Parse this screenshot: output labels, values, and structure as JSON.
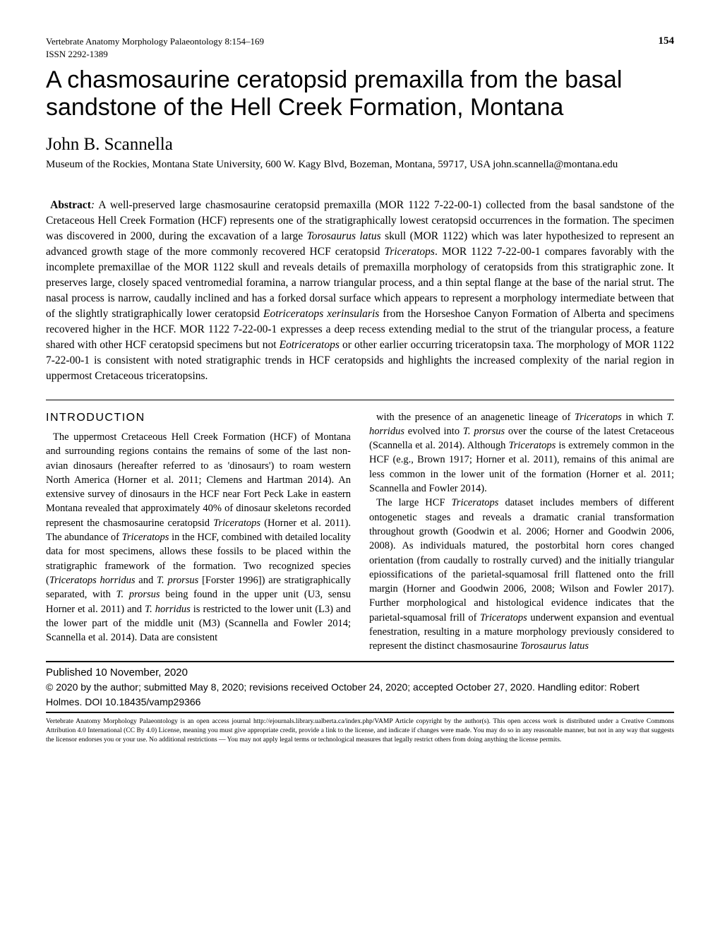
{
  "header": {
    "journal_line1": "Vertebrate Anatomy Morphology Palaeontology 8:154–169",
    "journal_line2": "ISSN 2292-1389",
    "page_number": "154"
  },
  "title": "A chasmosaurine ceratopsid premaxilla from the basal sandstone of the Hell Creek Formation, Montana",
  "author": "John B. Scannella",
  "affiliation": "Museum of the Rockies, Montana State University, 600 W. Kagy Blvd, Bozeman, Montana, 59717, USA john.scannella@montana.edu",
  "abstract": {
    "label": "Abstract",
    "text_html": "A well-preserved large chasmosaurine ceratopsid premaxilla (MOR 1122 7-22-00-1) collected from the basal sandstone of the Cretaceous Hell Creek Formation (HCF) represents one of the stratigraphically lowest ceratopsid occurrences in the formation. The specimen was discovered in 2000, during the excavation of a large <span class=\"italic\">Torosaurus latus</span> skull (MOR 1122) which was later hypothesized to represent an advanced growth stage of the more commonly recovered HCF ceratopsid <span class=\"italic\">Triceratops</span>. MOR 1122 7-22-00-1 compares favorably with the incomplete premaxillae of the MOR 1122 skull and reveals details of premaxilla morphology of ceratopsids from this stratigraphic zone. It preserves large, closely spaced ventromedial foramina, a narrow triangular process, and a thin septal flange at the base of the narial strut. The nasal process is narrow, caudally inclined and has a forked dorsal surface which appears to represent a morphology intermediate between that of the slightly stratigraphically lower ceratopsid <span class=\"italic\">Eotriceratops xerinsularis</span> from the Horseshoe Canyon Formation of Alberta and specimens recovered higher in the HCF. MOR 1122 7-22-00-1 expresses a deep recess extending medial to the strut of the triangular process, a feature shared with other HCF ceratopsid specimens but not <span class=\"italic\">Eotriceratops</span> or other earlier occurring triceratopsin taxa. The morphology of MOR 1122 7-22-00-1 is consistent with noted stratigraphic trends in HCF ceratopsids and highlights the increased complexity of the narial region in uppermost Cretaceous triceratopsins."
  },
  "introduction": {
    "heading": "INTRODUCTION",
    "col1_html": "The uppermost Cretaceous Hell Creek Formation (HCF) of Montana and surrounding regions contains the remains of some of the last non-avian dinosaurs (hereafter referred to as 'dinosaurs') to roam western North America (Horner et al. 2011; Clemens and Hartman 2014). An extensive survey of dinosaurs in the HCF near Fort Peck Lake in eastern Montana revealed that approximately 40% of dinosaur skeletons recorded represent the chasmosaurine ceratopsid <span class=\"italic\">Triceratops</span> (Horner et al. 2011). The abundance of <span class=\"italic\">Triceratops</span> in the HCF, combined with detailed locality data for most specimens, allows these fossils to be placed within the stratigraphic framework of the formation. Two recognized species (<span class=\"italic\">Triceratops horridus</span> and <span class=\"italic\">T. prorsus</span> [Forster 1996]) are stratigraphically separated, with <span class=\"italic\">T. prorsus</span> being found in the upper unit (U3, sensu Horner et al. 2011) and <span class=\"italic\">T. horridus</span> is restricted to the lower unit (L3) and the lower part of the middle unit (M3) (Scannella and Fowler 2014; Scannella et al. 2014). Data are consistent",
    "col2_p1_html": "with the presence of an anagenetic lineage of <span class=\"italic\">Triceratops</span> in which <span class=\"italic\">T. horridus</span> evolved into <span class=\"italic\">T. prorsus</span> over the course of the latest Cretaceous (Scannella et al. 2014). Although <span class=\"italic\">Triceratops</span> is extremely common in the HCF (e.g., Brown 1917; Horner et al. 2011), remains of this animal are less common in the lower unit of the formation (Horner et al. 2011; Scannella and Fowler 2014).",
    "col2_p2_html": "The large HCF <span class=\"italic\">Triceratops</span> dataset includes members of different ontogenetic stages and reveals a dramatic cranial transformation throughout growth (Goodwin et al. 2006; Horner and Goodwin 2006, 2008). As individuals matured, the postorbital horn cores changed orientation (from caudally to rostrally curved) and the initially triangular epiossifications of the parietal-squamosal frill flattened onto the frill margin (Horner and Goodwin 2006, 2008; Wilson and Fowler 2017). Further morphological and histological evidence indicates that the parietal-squamosal frill of <span class=\"italic\">Triceratops</span> underwent expansion and eventual fenestration, resulting in a mature morphology previously considered to represent the distinct chasmosaurine <span class=\"italic\">Torosaurus latus</span>"
  },
  "pub_info": {
    "date": "Published 10 November, 2020",
    "details": "© 2020 by the author; submitted May 8, 2020; revisions received October 24, 2020; accepted October 27, 2020. Handling editor: Robert Holmes.  DOI 10.18435/vamp29366"
  },
  "license": "Vertebrate Anatomy Morphology Palaeontology is an open access journal http://ejournals.library.ualberta.ca/index.php/VAMP  Article copyright by the author(s). This open access work is distributed under a Creative Commons Attribution 4.0 International (CC By 4.0) License, meaning you must give appropriate credit, provide a link to the license, and indicate if changes were made. You may do so in any reasonable manner, but not in any way that suggests the licensor endorses you or your use. No additional restrictions — You may not apply legal terms or technological measures that legally restrict others from doing anything the license permits."
}
